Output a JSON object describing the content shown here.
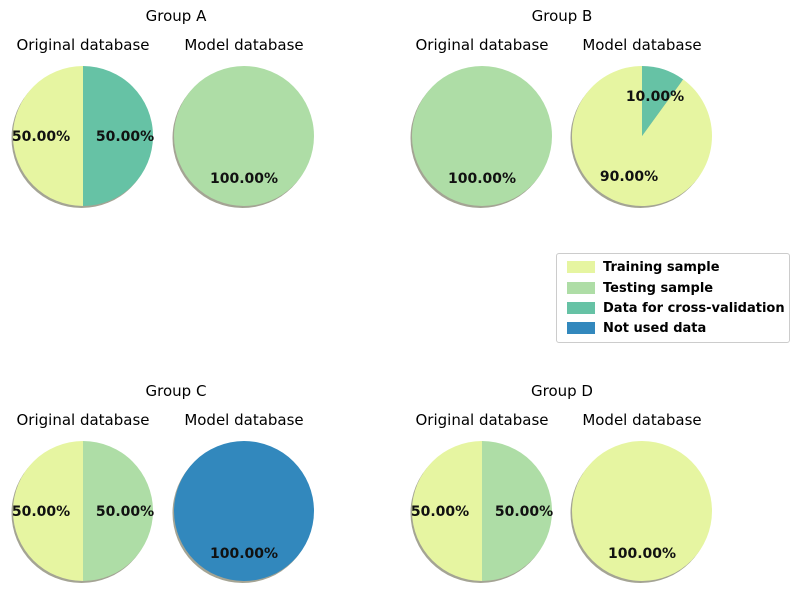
{
  "colors": {
    "training": "#e6f5a1",
    "testing": "#aedda6",
    "cross_validation": "#66c2a5",
    "not_used": "#3288bd",
    "shadow": "#5a5a3c"
  },
  "chart_data": {
    "type": "pie",
    "legend": {
      "position": "right-middle",
      "entries": [
        {
          "label": "Training sample",
          "color_key": "training"
        },
        {
          "label": "Testing sample",
          "color_key": "testing"
        },
        {
          "label": "Data for cross-validation",
          "color_key": "cross_validation"
        },
        {
          "label": "Not used data",
          "color_key": "not_used"
        }
      ]
    },
    "groups": [
      {
        "title": "Group A",
        "pies": [
          {
            "title": "Original database",
            "slices": [
              {
                "category": "Training sample",
                "value": 50.0,
                "label": "50.00%",
                "color_key": "training"
              },
              {
                "category": "Data for cross-validation",
                "value": 50.0,
                "label": "50.00%",
                "color_key": "cross_validation"
              }
            ]
          },
          {
            "title": "Model database",
            "slices": [
              {
                "category": "Testing sample",
                "value": 100.0,
                "label": "100.00%",
                "color_key": "testing"
              }
            ]
          }
        ]
      },
      {
        "title": "Group B",
        "pies": [
          {
            "title": "Original database",
            "slices": [
              {
                "category": "Testing sample",
                "value": 100.0,
                "label": "100.00%",
                "color_key": "testing"
              }
            ]
          },
          {
            "title": "Model database",
            "slices": [
              {
                "category": "Training sample",
                "value": 90.0,
                "label": "90.00%",
                "color_key": "training"
              },
              {
                "category": "Data for cross-validation",
                "value": 10.0,
                "label": "10.00%",
                "color_key": "cross_validation"
              }
            ]
          }
        ]
      },
      {
        "title": "Group C",
        "pies": [
          {
            "title": "Original database",
            "slices": [
              {
                "category": "Training sample",
                "value": 50.0,
                "label": "50.00%",
                "color_key": "training"
              },
              {
                "category": "Testing sample",
                "value": 50.0,
                "label": "50.00%",
                "color_key": "testing"
              }
            ]
          },
          {
            "title": "Model database",
            "slices": [
              {
                "category": "Not used data",
                "value": 100.0,
                "label": "100.00%",
                "color_key": "not_used"
              }
            ]
          }
        ]
      },
      {
        "title": "Group D",
        "pies": [
          {
            "title": "Original database",
            "slices": [
              {
                "category": "Training sample",
                "value": 50.0,
                "label": "50.00%",
                "color_key": "training"
              },
              {
                "category": "Testing sample",
                "value": 50.0,
                "label": "50.00%",
                "color_key": "testing"
              }
            ]
          },
          {
            "title": "Model database",
            "slices": [
              {
                "category": "Training sample",
                "value": 100.0,
                "label": "100.00%",
                "color_key": "training"
              }
            ]
          }
        ]
      }
    ]
  }
}
